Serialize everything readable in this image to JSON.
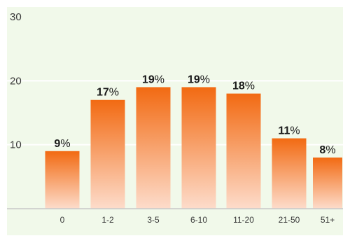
{
  "chart_data": {
    "type": "bar",
    "categories": [
      "0",
      "1-2",
      "3-5",
      "6-10",
      "11-20",
      "21-50",
      "51+"
    ],
    "values": [
      9,
      17,
      19,
      19,
      18,
      11,
      8
    ],
    "value_suffix": "%",
    "ylim": [
      0,
      30
    ],
    "yticks": [
      10,
      20,
      30
    ],
    "grid": true,
    "colors": {
      "plot_background": "#f1f9ea",
      "gridline": "#ffffff",
      "bar_top": "#f26a12",
      "bar_bottom": "#fddccb",
      "axis_line": "#c8c8c8"
    }
  }
}
